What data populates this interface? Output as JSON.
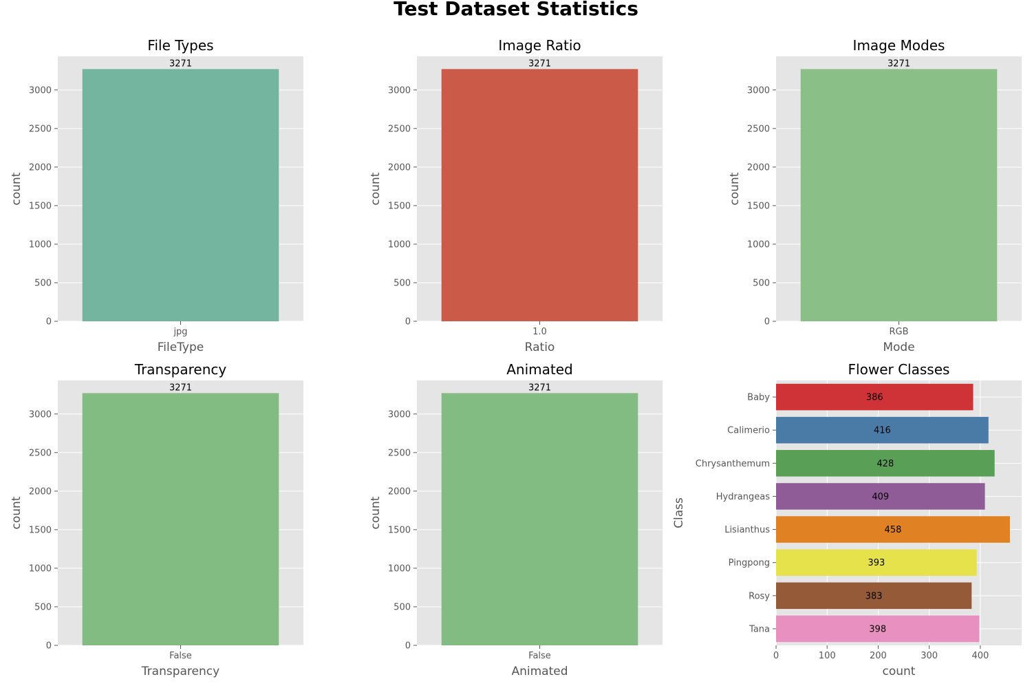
{
  "figure_title": "Test Dataset Statistics",
  "chart_data": [
    {
      "type": "bar",
      "title": "File Types",
      "xlabel": "FileType",
      "ylabel": "count",
      "categories": [
        "jpg"
      ],
      "values": [
        3271
      ],
      "data_labels": [
        "3271"
      ],
      "ylim": [
        0,
        3435
      ],
      "yticks": [
        0,
        500,
        1000,
        1500,
        2000,
        2500,
        3000
      ],
      "colors": [
        "#74b5a0"
      ],
      "grid": true
    },
    {
      "type": "bar",
      "title": "Image Ratio",
      "xlabel": "Ratio",
      "ylabel": "count",
      "categories": [
        "1.0"
      ],
      "values": [
        3271
      ],
      "data_labels": [
        "3271"
      ],
      "ylim": [
        0,
        3435
      ],
      "yticks": [
        0,
        500,
        1000,
        1500,
        2000,
        2500,
        3000
      ],
      "colors": [
        "#cc5a49"
      ],
      "grid": true
    },
    {
      "type": "bar",
      "title": "Image Modes",
      "xlabel": "Mode",
      "ylabel": "count",
      "categories": [
        "RGB"
      ],
      "values": [
        3271
      ],
      "data_labels": [
        "3271"
      ],
      "ylim": [
        0,
        3435
      ],
      "yticks": [
        0,
        500,
        1000,
        1500,
        2000,
        2500,
        3000
      ],
      "colors": [
        "#8ac087"
      ],
      "grid": true
    },
    {
      "type": "bar",
      "title": "Transparency",
      "xlabel": "Transparency",
      "ylabel": "count",
      "categories": [
        "False"
      ],
      "values": [
        3271
      ],
      "data_labels": [
        "3271"
      ],
      "ylim": [
        0,
        3435
      ],
      "yticks": [
        0,
        500,
        1000,
        1500,
        2000,
        2500,
        3000
      ],
      "colors": [
        "#82bc82"
      ],
      "grid": true
    },
    {
      "type": "bar",
      "title": "Animated",
      "xlabel": "Animated",
      "ylabel": "count",
      "categories": [
        "False"
      ],
      "values": [
        3271
      ],
      "data_labels": [
        "3271"
      ],
      "ylim": [
        0,
        3435
      ],
      "yticks": [
        0,
        500,
        1000,
        1500,
        2000,
        2500,
        3000
      ],
      "colors": [
        "#82bc82"
      ],
      "grid": true
    },
    {
      "type": "bar",
      "orientation": "horizontal",
      "title": "Flower Classes",
      "xlabel": "count",
      "ylabel": "Class",
      "categories": [
        "Baby",
        "Calimerio",
        "Chrysanthemum",
        "Hydrangeas",
        "Lisianthus",
        "Pingpong",
        "Rosy",
        "Tana"
      ],
      "values": [
        386,
        416,
        428,
        409,
        458,
        393,
        383,
        398
      ],
      "data_labels": [
        "386",
        "416",
        "428",
        "409",
        "458",
        "393",
        "383",
        "398"
      ],
      "xlim": [
        0,
        481
      ],
      "xticks": [
        0,
        100,
        200,
        300,
        400
      ],
      "colors": [
        "#d03337",
        "#4a7aa6",
        "#59a056",
        "#8f5c98",
        "#e08224",
        "#e6e24b",
        "#955b38",
        "#e890c0"
      ],
      "grid": true
    }
  ]
}
